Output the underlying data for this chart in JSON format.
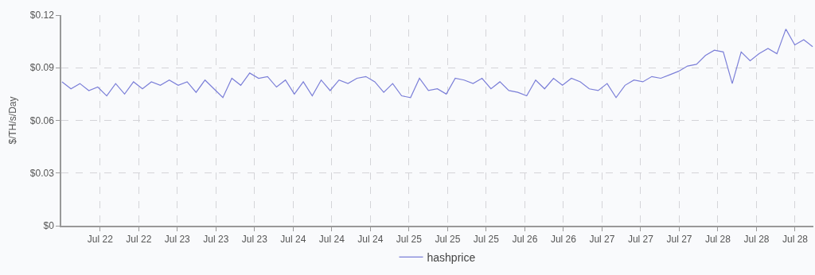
{
  "chart_data": {
    "type": "line",
    "ylabel": "$/TH/s/Day",
    "x": [
      "--07-22T01:00",
      "--07-22T03:00",
      "--07-22T05:00",
      "--07-22T07:00",
      "--07-22T09:00",
      "--07-22T11:00",
      "--07-22T13:00",
      "--07-22T15:00",
      "--07-22T17:00",
      "--07-22T19:00",
      "--07-22T21:00",
      "--07-22T23:00",
      "--07-23T01:00",
      "--07-23T03:00",
      "--07-23T05:00",
      "--07-23T07:00",
      "--07-23T09:00",
      "--07-23T11:00",
      "--07-23T13:00",
      "--07-23T15:00",
      "--07-23T17:00",
      "--07-23T19:00",
      "--07-23T21:00",
      "--07-23T23:00",
      "--07-24T01:00",
      "--07-24T03:00",
      "--07-24T05:00",
      "--07-24T07:00",
      "--07-24T09:00",
      "--07-24T11:00",
      "--07-24T13:00",
      "--07-24T15:00",
      "--07-24T17:00",
      "--07-24T19:00",
      "--07-24T21:00",
      "--07-24T23:00",
      "--07-25T01:00",
      "--07-25T03:00",
      "--07-25T05:00",
      "--07-25T07:00",
      "--07-25T09:00",
      "--07-25T11:00",
      "--07-25T13:00",
      "--07-25T15:00",
      "--07-25T17:00",
      "--07-25T19:00",
      "--07-25T21:00",
      "--07-25T23:00",
      "--07-26T01:00",
      "--07-26T03:00",
      "--07-26T05:00",
      "--07-26T07:00",
      "--07-26T09:00",
      "--07-26T11:00",
      "--07-26T13:00",
      "--07-26T15:00",
      "--07-26T17:00",
      "--07-26T19:00",
      "--07-26T21:00",
      "--07-26T23:00",
      "--07-27T01:00",
      "--07-27T03:00",
      "--07-27T05:00",
      "--07-27T07:00",
      "--07-27T09:00",
      "--07-27T11:00",
      "--07-27T13:00",
      "--07-27T15:00",
      "--07-27T17:00",
      "--07-27T19:00",
      "--07-27T21:00",
      "--07-27T23:00",
      "--07-28T01:00",
      "--07-28T03:00",
      "--07-28T05:00",
      "--07-28T07:00",
      "--07-28T09:00",
      "--07-28T11:00",
      "--07-28T13:00",
      "--07-28T15:00",
      "--07-28T17:00",
      "--07-28T19:00",
      "--07-28T21:00",
      "--07-28T23:00",
      "--07-29T01:00"
    ],
    "series": [
      {
        "name": "hashprice",
        "color": "#7b7fd8",
        "values": [
          0.082,
          0.078,
          0.081,
          0.077,
          0.079,
          0.074,
          0.081,
          0.075,
          0.082,
          0.078,
          0.082,
          0.08,
          0.083,
          0.08,
          0.082,
          0.076,
          0.083,
          0.078,
          0.073,
          0.084,
          0.08,
          0.087,
          0.084,
          0.085,
          0.079,
          0.083,
          0.075,
          0.082,
          0.074,
          0.083,
          0.077,
          0.083,
          0.081,
          0.084,
          0.085,
          0.082,
          0.076,
          0.081,
          0.074,
          0.073,
          0.084,
          0.077,
          0.078,
          0.075,
          0.084,
          0.083,
          0.081,
          0.084,
          0.078,
          0.082,
          0.077,
          0.076,
          0.074,
          0.083,
          0.078,
          0.084,
          0.08,
          0.084,
          0.082,
          0.078,
          0.077,
          0.081,
          0.073,
          0.08,
          0.083,
          0.082,
          0.085,
          0.084,
          0.086,
          0.088,
          0.091,
          0.092,
          0.097,
          0.1,
          0.099,
          0.081,
          0.099,
          0.094,
          0.098,
          0.101,
          0.098,
          0.112,
          0.103,
          0.106,
          0.102
        ]
      }
    ],
    "xlim": [
      "--07-22T00:50",
      "--07-29T01:10"
    ],
    "xticks": [
      {
        "value": "--07-22T09:32",
        "label": "Jul 22"
      },
      {
        "value": "--07-22T18:10",
        "label": "Jul 22"
      },
      {
        "value": "--07-23T02:48",
        "label": "Jul 23"
      },
      {
        "value": "--07-23T11:27",
        "label": "Jul 23"
      },
      {
        "value": "--07-23T20:05",
        "label": "Jul 23"
      },
      {
        "value": "--07-24T04:44",
        "label": "Jul 24"
      },
      {
        "value": "--07-24T13:22",
        "label": "Jul 24"
      },
      {
        "value": "--07-24T22:01",
        "label": "Jul 24"
      },
      {
        "value": "--07-25T06:39",
        "label": "Jul 25"
      },
      {
        "value": "--07-25T15:18",
        "label": "Jul 25"
      },
      {
        "value": "--07-25T23:56",
        "label": "Jul 25"
      },
      {
        "value": "--07-26T08:35",
        "label": "Jul 26"
      },
      {
        "value": "--07-26T17:13",
        "label": "Jul 26"
      },
      {
        "value": "--07-27T01:52",
        "label": "Jul 27"
      },
      {
        "value": "--07-27T10:30",
        "label": "Jul 27"
      },
      {
        "value": "--07-27T19:09",
        "label": "Jul 27"
      },
      {
        "value": "--07-28T03:47",
        "label": "Jul 28"
      },
      {
        "value": "--07-28T12:26",
        "label": "Jul 28"
      },
      {
        "value": "--07-28T21:04",
        "label": "Jul 28"
      }
    ],
    "ylim": [
      0,
      0.12
    ],
    "yticks": [
      {
        "value": 0,
        "label": "$0"
      },
      {
        "value": 0.03,
        "label": "$0.03"
      },
      {
        "value": 0.06,
        "label": "$0.06"
      },
      {
        "value": 0.09,
        "label": "$0.09"
      },
      {
        "value": 0.12,
        "label": "$0.12"
      }
    ],
    "grid": true,
    "legend": "bottom",
    "marker": "none",
    "line_style": "solid"
  }
}
